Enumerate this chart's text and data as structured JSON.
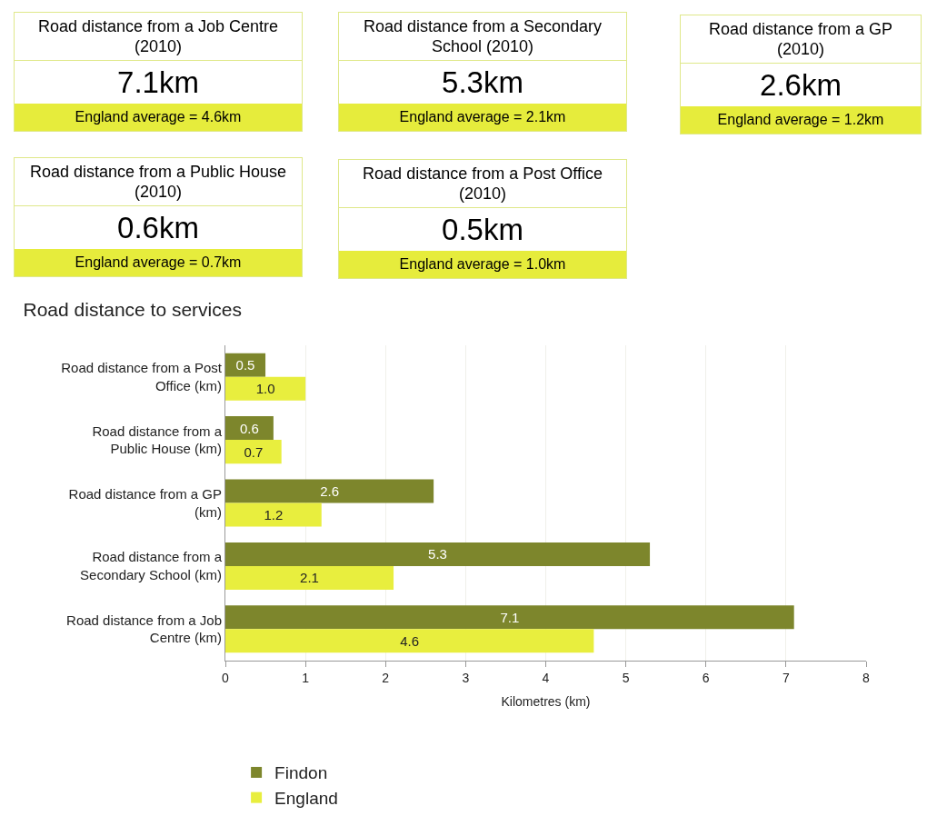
{
  "chart_data": [
    {
      "type": "other",
      "title": "Road distance from a Job Centre (2010)",
      "annotations": [
        "7.1km",
        "England average = 4.6km"
      ]
    },
    {
      "type": "other",
      "title": "Road distance from a Secondary School (2010)",
      "annotations": [
        "5.3km",
        "England average = 2.1km"
      ]
    },
    {
      "type": "other",
      "title": "Road distance from a GP (2010)",
      "annotations": [
        "2.6km",
        "England average = 1.2km"
      ]
    },
    {
      "type": "other",
      "title": "Road distance from a Public House (2010)",
      "annotations": [
        "0.6km",
        "England average = 0.7km"
      ]
    },
    {
      "type": "other",
      "title": "Road distance from a Post Office (2010)",
      "annotations": [
        "0.5km",
        "England average = 1.0km"
      ]
    },
    {
      "type": "bar",
      "title": "Road distance to services",
      "orientation": "horizontal",
      "xlabel": "Kilometres (km)",
      "categories": [
        "Road distance from a Post Office (km)",
        "Road distance from a Public House (km)",
        "Road distance from a GP (km)",
        "Road distance from a Secondary School (km)",
        "Road distance from a Job Centre (km)"
      ],
      "series": [
        {
          "name": "Findon",
          "color": "#7d862c",
          "values": [
            0.5,
            0.6,
            2.6,
            5.3,
            7.1
          ],
          "value_labels": [
            "0.5",
            "0.6",
            "2.6",
            "5.3",
            "7.1"
          ]
        },
        {
          "name": "England",
          "color": "#e8ee3e",
          "values": [
            1.0,
            0.7,
            1.2,
            2.1,
            4.6
          ],
          "value_labels": [
            "1.0",
            "0.7",
            "1.2",
            "2.1",
            "4.6"
          ]
        }
      ],
      "xlim": [
        0,
        8
      ],
      "xticks": [
        0,
        1,
        2,
        3,
        4,
        5,
        6,
        7,
        8
      ],
      "grid": "x",
      "legend": "bottom"
    }
  ]
}
